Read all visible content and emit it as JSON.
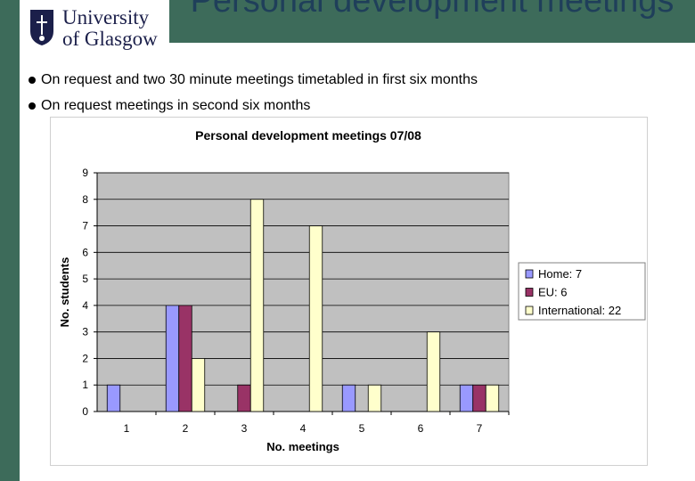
{
  "logo": {
    "line1": "University",
    "line2": "of Glasgow"
  },
  "slide": {
    "title": "Personal development meetings",
    "bullets": [
      "On request and two 30 minute meetings timetabled in first six months",
      "On request meetings in second six months"
    ]
  },
  "colors": {
    "theme": "#3d6b5a",
    "home": "#9999ff",
    "eu": "#993366",
    "international": "#ffffcc",
    "plot_bg": "#c0c0c0"
  },
  "chart_data": {
    "type": "bar",
    "title": "Personal development meetings 07/08",
    "xlabel": "No. meetings",
    "ylabel": "No. students",
    "categories": [
      "1",
      "2",
      "3",
      "4",
      "5",
      "6",
      "7"
    ],
    "ylim": [
      0,
      9
    ],
    "yticks": [
      "0",
      "1",
      "2",
      "3",
      "4",
      "5",
      "6",
      "7",
      "8",
      "9"
    ],
    "grid": true,
    "legend_position": "right",
    "series": [
      {
        "name": "Home: 7",
        "values": [
          1,
          4,
          0,
          0,
          1,
          0,
          1
        ]
      },
      {
        "name": "EU: 6",
        "values": [
          0,
          4,
          1,
          0,
          0,
          0,
          1
        ]
      },
      {
        "name": "International: 22",
        "values": [
          0,
          2,
          8,
          7,
          1,
          3,
          1
        ]
      }
    ]
  }
}
